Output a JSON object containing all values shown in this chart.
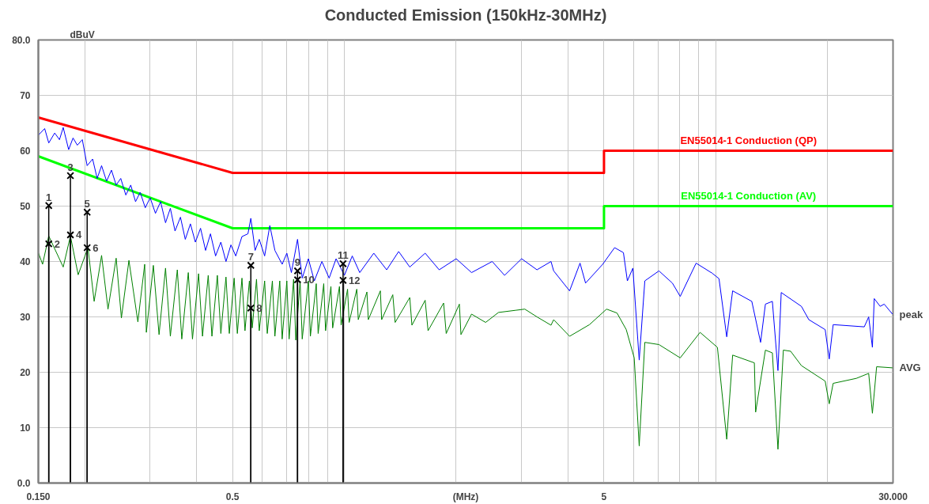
{
  "chart_data": {
    "type": "line",
    "title": "Conducted Emission (150kHz-30MHz)",
    "xlabel": "(MHz)",
    "ylabel": "dBuV",
    "log": "x",
    "grid": true,
    "xlim": [
      0.15,
      30
    ],
    "ylim": [
      0,
      80
    ],
    "xticks": [
      {
        "value": 0.15,
        "label": "0.150"
      },
      {
        "value": 0.2,
        "label": null
      },
      {
        "value": 0.3,
        "label": null
      },
      {
        "value": 0.4,
        "label": null
      },
      0.5,
      {
        "value": 0.6,
        "label": null
      },
      {
        "value": 0.7,
        "label": null
      },
      {
        "value": 0.8,
        "label": null
      },
      {
        "value": 0.9,
        "label": null
      },
      {
        "value": 1,
        "label": null
      },
      {
        "value": 2,
        "label": null
      },
      {
        "value": 3,
        "label": null
      },
      {
        "value": 4,
        "label": null
      },
      5,
      {
        "value": 6,
        "label": null
      },
      {
        "value": 7,
        "label": null
      },
      {
        "value": 8,
        "label": null
      },
      {
        "value": 9,
        "label": null
      },
      {
        "value": 10,
        "label": null
      },
      {
        "value": 20,
        "label": null
      },
      {
        "value": 30,
        "label": "30.000"
      }
    ],
    "yticks": [
      {
        "value": 0,
        "label": "0.0"
      },
      10,
      20,
      30,
      40,
      50,
      60,
      70,
      {
        "value": 80,
        "label": "80.0"
      }
    ],
    "series": [
      {
        "name": "EN55014-1 Conduction (QP)",
        "color": "#ff0000",
        "x": [
          0.15,
          0.5,
          5,
          5,
          30
        ],
        "values": [
          66,
          56,
          56,
          60,
          60
        ]
      },
      {
        "name": "EN55014-1 Conduction (AV)",
        "color": "#00ff00",
        "x": [
          0.15,
          0.5,
          5,
          5,
          30
        ],
        "values": [
          59,
          46,
          46,
          50,
          50
        ]
      },
      {
        "name": "peak",
        "color": "#0000ff",
        "x": [
          0.15,
          0.156,
          0.16,
          0.166,
          0.171,
          0.175,
          0.181,
          0.186,
          0.191,
          0.197,
          0.203,
          0.21,
          0.216,
          0.222,
          0.229,
          0.236,
          0.243,
          0.25,
          0.258,
          0.266,
          0.274,
          0.282,
          0.291,
          0.3,
          0.31,
          0.32,
          0.33,
          0.34,
          0.35,
          0.362,
          0.373,
          0.385,
          0.397,
          0.41,
          0.423,
          0.436,
          0.45,
          0.465,
          0.48,
          0.495,
          0.51,
          0.53,
          0.55,
          0.56,
          0.575,
          0.59,
          0.61,
          0.63,
          0.65,
          0.68,
          0.7,
          0.72,
          0.748,
          0.77,
          0.8,
          0.83,
          0.87,
          0.91,
          0.95,
          1.0,
          1.05,
          1.1,
          1.2,
          1.3,
          1.4,
          1.5,
          1.65,
          1.8,
          2.0,
          2.2,
          2.5,
          2.7,
          3.0,
          3.3,
          3.6,
          3.66,
          4.04,
          4.31,
          4.46,
          4.96,
          5.34,
          5.64,
          5.78,
          5.98,
          6.22,
          6.44,
          7.03,
          7.64,
          8.02,
          8.85,
          9.77,
          10.2,
          10.7,
          11.1,
          12.5,
          13.2,
          13.6,
          14.2,
          14.7,
          15.0,
          17.0,
          17.8,
          19.7,
          20.2,
          20.7,
          25.1,
          25.8,
          26.4,
          26.7,
          27.7,
          28.4,
          29.9
        ],
        "values": [
          62.8,
          64.0,
          61.4,
          63.2,
          62.0,
          64.2,
          60.2,
          62.3,
          61.0,
          62.0,
          57.3,
          58.5,
          55.0,
          57.3,
          54.5,
          56.5,
          53.8,
          55.0,
          52.0,
          53.8,
          50.8,
          52.5,
          49.7,
          51.5,
          48.7,
          50.8,
          47.0,
          49.6,
          45.5,
          48.0,
          44.0,
          46.8,
          43.5,
          46.0,
          42.0,
          45.0,
          41.0,
          43.5,
          40.0,
          43.0,
          41.0,
          44.5,
          45.0,
          47.8,
          42.0,
          44.0,
          41.0,
          46.5,
          42.0,
          39.5,
          41.5,
          38.0,
          44.0,
          37.0,
          40.5,
          36.5,
          40.0,
          37.0,
          40.5,
          37.5,
          41.0,
          38.0,
          41.5,
          38.5,
          41.8,
          39.0,
          41.5,
          38.5,
          40.5,
          38.0,
          40.0,
          37.5,
          40.5,
          38.5,
          40.0,
          38.3,
          34.7,
          39.7,
          36.1,
          39.5,
          42.5,
          41.6,
          36.5,
          38.8,
          22.2,
          36.5,
          38.3,
          36.1,
          33.7,
          39.7,
          37.9,
          36.9,
          26.4,
          34.7,
          32.8,
          25.4,
          32.3,
          32.8,
          20.3,
          34.4,
          31.9,
          29.5,
          27.7,
          22.4,
          28.6,
          28.2,
          30.0,
          24.5,
          33.3,
          31.9,
          32.3,
          30.5
        ]
      },
      {
        "name": "AVG",
        "color": "#008000",
        "x": [
          0.15,
          0.154,
          0.16,
          0.175,
          0.183,
          0.192,
          0.204,
          0.212,
          0.222,
          0.231,
          0.243,
          0.251,
          0.263,
          0.278,
          0.29,
          0.293,
          0.306,
          0.317,
          0.33,
          0.34,
          0.355,
          0.365,
          0.38,
          0.39,
          0.405,
          0.415,
          0.43,
          0.44,
          0.455,
          0.465,
          0.48,
          0.49,
          0.505,
          0.515,
          0.53,
          0.54,
          0.555,
          0.565,
          0.58,
          0.59,
          0.61,
          0.62,
          0.64,
          0.65,
          0.67,
          0.68,
          0.7,
          0.71,
          0.73,
          0.74,
          0.76,
          0.77,
          0.8,
          0.81,
          0.84,
          0.85,
          0.88,
          0.89,
          0.92,
          0.93,
          0.97,
          0.98,
          1.02,
          1.03,
          1.08,
          1.09,
          1.15,
          1.16,
          1.25,
          1.26,
          1.35,
          1.37,
          1.5,
          1.52,
          1.65,
          1.68,
          1.85,
          1.88,
          2.04,
          2.06,
          2.2,
          2.4,
          2.6,
          2.9,
          3.06,
          3.3,
          3.6,
          3.66,
          4.04,
          4.57,
          5.08,
          5.42,
          5.74,
          6.03,
          6.22,
          6.44,
          7.03,
          8.02,
          9.07,
          10.1,
          10.7,
          11.1,
          12.7,
          12.8,
          13.6,
          14.2,
          14.7,
          15.2,
          15.9,
          17.0,
          19.7,
          20.2,
          20.7,
          23.9,
          25.8,
          26.4,
          27.1,
          29.9
        ],
        "values": [
          41.6,
          39.5,
          44.6,
          39.0,
          44.6,
          37.6,
          42.5,
          32.8,
          41.1,
          31.4,
          40.6,
          29.8,
          40.2,
          29.1,
          39.5,
          27.2,
          39.3,
          26.8,
          38.8,
          26.5,
          38.5,
          26.0,
          38.0,
          26.0,
          37.8,
          26.5,
          37.5,
          26.5,
          37.5,
          27.0,
          37.2,
          27.0,
          37.0,
          27.0,
          37.0,
          27.5,
          36.5,
          28.0,
          36.8,
          27.5,
          36.5,
          27.0,
          36.5,
          26.5,
          36.5,
          26.0,
          36.5,
          26.0,
          36.8,
          25.8,
          36.5,
          26.0,
          36.5,
          26.5,
          36.0,
          27.0,
          36.0,
          27.5,
          35.5,
          28.0,
          35.5,
          28.5,
          35.0,
          29.0,
          35.0,
          29.5,
          34.5,
          29.5,
          34.7,
          29.5,
          34.0,
          29.0,
          33.5,
          28.5,
          33.0,
          27.5,
          32.5,
          27.0,
          32.3,
          26.8,
          30.5,
          29.0,
          30.8,
          31.2,
          31.4,
          30.0,
          28.5,
          29.5,
          26.5,
          28.6,
          31.4,
          30.7,
          27.7,
          22.6,
          6.7,
          25.4,
          25.0,
          22.6,
          27.2,
          24.5,
          7.9,
          23.1,
          21.7,
          12.8,
          24.0,
          23.5,
          6.1,
          24.0,
          23.8,
          21.2,
          18.4,
          14.3,
          18.0,
          18.9,
          19.8,
          12.6,
          21.0,
          20.8
        ]
      },
      {
        "type": "lollipop",
        "color": "#000000",
        "marker": "cross",
        "x": [
          0.16,
          0.16,
          0.183,
          0.183,
          0.203,
          0.203,
          0.56,
          0.56,
          0.748,
          0.748,
          0.992,
          0.992
        ],
        "values": [
          50.1,
          43.2,
          55.5,
          44.8,
          48.9,
          42.5,
          39.3,
          31.6,
          38.3,
          36.7,
          39.6,
          36.6
        ]
      }
    ],
    "annotations": [
      {
        "text": "1",
        "x": 0.16,
        "y": 50.1
      },
      {
        "text": "2",
        "x": 0.16,
        "y": 43.2
      },
      {
        "text": "3",
        "x": 0.183,
        "y": 55.5
      },
      {
        "text": "4",
        "x": 0.183,
        "y": 44.8
      },
      {
        "text": "5",
        "x": 0.203,
        "y": 48.9
      },
      {
        "text": "6",
        "x": 0.203,
        "y": 42.5
      },
      {
        "text": "7",
        "x": 0.56,
        "y": 39.3
      },
      {
        "text": "8",
        "x": 0.56,
        "y": 31.6
      },
      {
        "text": "9",
        "x": 0.748,
        "y": 38.3
      },
      {
        "text": "10",
        "x": 0.748,
        "y": 36.7
      },
      {
        "text": "11",
        "x": 0.992,
        "y": 39.6
      },
      {
        "text": "12",
        "x": 0.992,
        "y": 36.6
      }
    ]
  }
}
